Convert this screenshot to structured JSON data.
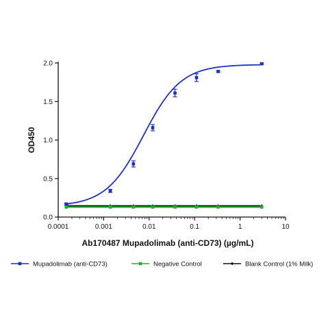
{
  "chart_data": {
    "type": "scatter",
    "xlabel": "Ab170487 Mupadolimab (anti-CD73) (µg/mL)",
    "ylabel": "OD450",
    "x_scale": "log",
    "xlim": [
      0.0001,
      10
    ],
    "ylim": [
      0.0,
      2.0
    ],
    "x_ticks": [
      {
        "value": 0.0001,
        "label": "0.0001"
      },
      {
        "value": 0.001,
        "label": "0.001"
      },
      {
        "value": 0.01,
        "label": "0.01"
      },
      {
        "value": 0.1,
        "label": "0.1"
      },
      {
        "value": 1,
        "label": "1"
      },
      {
        "value": 10,
        "label": "10"
      }
    ],
    "y_ticks": [
      {
        "value": 0.0,
        "label": "0.0"
      },
      {
        "value": 0.5,
        "label": "0.5"
      },
      {
        "value": 1.0,
        "label": "1.0"
      },
      {
        "value": 1.5,
        "label": "1.5"
      },
      {
        "value": 2.0,
        "label": "2.0"
      }
    ],
    "grid": false,
    "legend_position": "bottom",
    "series": [
      {
        "name": "Mupadolimab (anti-CD73)",
        "color": "#1f2fbf",
        "marker": "circle",
        "x": [
          0.00015,
          0.0014,
          0.0045,
          0.012,
          0.037,
          0.11,
          0.33,
          3.0
        ],
        "y": [
          0.17,
          0.34,
          0.69,
          1.16,
          1.61,
          1.81,
          1.89,
          1.99
        ],
        "error": [
          0.01,
          0.02,
          0.04,
          0.04,
          0.05,
          0.05,
          0.01,
          0.01
        ],
        "fit": {
          "bottom": 0.14,
          "top": 1.98,
          "ec50": 0.0075,
          "hill": 1.05
        }
      },
      {
        "name": "Negative Control",
        "color": "#22b02c",
        "marker": "square",
        "x": [
          0.00015,
          0.0014,
          0.0045,
          0.012,
          0.037,
          0.11,
          0.33,
          3.0
        ],
        "y": [
          0.13,
          0.13,
          0.13,
          0.13,
          0.13,
          0.13,
          0.13,
          0.13
        ],
        "error": [
          0.005,
          0.005,
          0.005,
          0.005,
          0.005,
          0.005,
          0.005,
          0.005
        ],
        "fit": {
          "flat": 0.13
        }
      },
      {
        "name": "Blank Control (1% Milk)",
        "color": "#111111",
        "marker": "diamond",
        "x": [
          0.00015,
          0.0014,
          0.0045,
          0.012,
          0.037,
          0.11,
          0.33,
          3.0
        ],
        "y": [
          0.145,
          0.145,
          0.145,
          0.145,
          0.145,
          0.145,
          0.145,
          0.145
        ],
        "error": [
          0.003,
          0.003,
          0.003,
          0.003,
          0.003,
          0.003,
          0.003,
          0.003
        ],
        "fit": {
          "flat": 0.145
        }
      }
    ]
  }
}
